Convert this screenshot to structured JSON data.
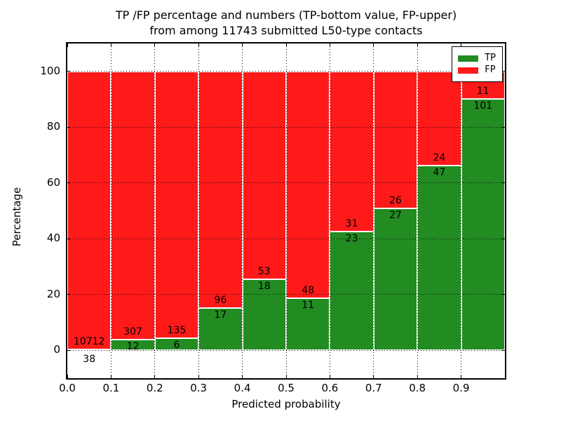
{
  "chart_data": {
    "type": "bar",
    "stacked": true,
    "normalized_to_percent": true,
    "title_line1": "TP /FP percentage and numbers (TP-bottom value, FP-upper)",
    "title_line2": "from among 11743 submitted L50-type contacts",
    "xlabel": "Predicted probability",
    "ylabel": "Percentage",
    "xlim": [
      0.0,
      1.0
    ],
    "ylim": [
      -10,
      110
    ],
    "xtick_values": [
      0.0,
      0.1,
      0.2,
      0.3,
      0.4,
      0.5,
      0.6,
      0.7,
      0.8,
      0.9
    ],
    "xtick_labels": [
      "0.0",
      "0.1",
      "0.2",
      "0.3",
      "0.4",
      "0.5",
      "0.6",
      "0.7",
      "0.8",
      "0.9"
    ],
    "ytick_values": [
      0,
      20,
      40,
      60,
      80,
      100
    ],
    "ytick_labels": [
      "0",
      "20",
      "40",
      "60",
      "80",
      "100"
    ],
    "grid_style": "dotted",
    "bar_width": 0.1,
    "bin_starts": [
      0.0,
      0.1,
      0.2,
      0.3,
      0.4,
      0.5,
      0.6,
      0.7,
      0.8,
      0.9
    ],
    "series": [
      {
        "name": "TP",
        "color": "#228B22",
        "counts": [
          38,
          12,
          6,
          17,
          18,
          11,
          23,
          27,
          47,
          101
        ]
      },
      {
        "name": "FP",
        "color": "#ff1a1a",
        "counts": [
          10712,
          307,
          135,
          96,
          53,
          48,
          31,
          26,
          24,
          11
        ]
      }
    ],
    "submitted_total": 11743,
    "legend": {
      "position": "upper right",
      "entries": [
        {
          "label": "TP",
          "color": "#228B22"
        },
        {
          "label": "FP",
          "color": "#ff1a1a"
        }
      ]
    }
  }
}
